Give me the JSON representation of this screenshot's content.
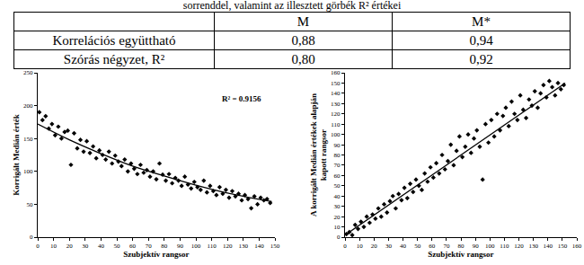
{
  "caption": "sorrenddel, valamint az illesztett görbék R² értékei",
  "table": {
    "header": [
      "M",
      "M*"
    ],
    "rows": [
      [
        "Korrelációs együttható",
        "0,88",
        "0,94"
      ],
      [
        "Szórás négyzet, R²",
        "0,80",
        "0,92"
      ]
    ]
  },
  "chart_data": [
    {
      "type": "scatter",
      "x_label": "Szubjektív rangsor",
      "y_label": [
        "Korrigált Medián érték"
      ],
      "annotation": "R² = 0.9156",
      "xlim": [
        0,
        150
      ],
      "xticks": [
        0,
        10,
        20,
        30,
        40,
        50,
        60,
        70,
        80,
        90,
        100,
        110,
        120,
        130,
        140,
        150
      ],
      "ylim": [
        0,
        250
      ],
      "yticks": [
        0,
        50,
        100,
        150,
        200,
        250
      ],
      "grid": false,
      "series": [
        {
          "type": "scatter",
          "color": "#000000",
          "marker": "diamond",
          "x": [
            1,
            3,
            5,
            7,
            9,
            11,
            13,
            15,
            17,
            19,
            21,
            23,
            25,
            27,
            29,
            31,
            33,
            35,
            37,
            39,
            41,
            43,
            45,
            47,
            49,
            51,
            53,
            55,
            57,
            59,
            61,
            63,
            65,
            67,
            69,
            71,
            73,
            75,
            77,
            79,
            81,
            83,
            85,
            87,
            89,
            91,
            93,
            95,
            97,
            99,
            101,
            103,
            105,
            107,
            109,
            111,
            113,
            115,
            117,
            119,
            121,
            123,
            125,
            127,
            129,
            131,
            133,
            135,
            137,
            139,
            141,
            143,
            145,
            147
          ],
          "values": [
            190,
            178,
            184,
            165,
            172,
            155,
            168,
            150,
            160,
            162,
            110,
            158,
            135,
            148,
            130,
            146,
            128,
            138,
            120,
            132,
            125,
            118,
            130,
            112,
            124,
            115,
            108,
            118,
            100,
            112,
            104,
            96,
            110,
            98,
            102,
            92,
            100,
            88,
            112,
            95,
            86,
            96,
            82,
            90,
            86,
            78,
            92,
            80,
            74,
            84,
            76,
            72,
            86,
            68,
            78,
            70,
            64,
            76,
            66,
            72,
            60,
            70,
            62,
            66,
            56,
            64,
            58,
            44,
            62,
            50,
            60,
            56,
            58,
            52
          ]
        },
        {
          "type": "line",
          "color": "#000000",
          "line_style": "solid",
          "x": [
            0,
            20,
            40,
            60,
            80,
            100,
            120,
            148
          ],
          "values": [
            172,
            148,
            127,
            108,
            93,
            79,
            67,
            54
          ]
        }
      ]
    },
    {
      "type": "scatter",
      "x_label": "Szubjektív rangsor",
      "y_label": [
        "A korrigált Medián értékek alapján",
        "kapott rangsor"
      ],
      "xlim": [
        0,
        160
      ],
      "xticks": [
        0,
        10,
        20,
        30,
        40,
        50,
        60,
        70,
        80,
        90,
        100,
        110,
        120,
        130,
        140,
        150,
        160
      ],
      "ylim": [
        0,
        160
      ],
      "yticks": [
        0,
        10,
        20,
        30,
        40,
        50,
        60,
        70,
        80,
        90,
        100,
        110,
        120,
        130,
        140,
        150,
        160
      ],
      "grid": false,
      "series": [
        {
          "type": "scatter",
          "color": "#000000",
          "marker": "diamond",
          "x": [
            1,
            3,
            5,
            7,
            9,
            11,
            13,
            15,
            17,
            19,
            21,
            23,
            25,
            27,
            29,
            31,
            33,
            35,
            37,
            39,
            41,
            43,
            45,
            47,
            49,
            51,
            53,
            55,
            57,
            59,
            61,
            63,
            65,
            67,
            69,
            71,
            73,
            75,
            77,
            79,
            81,
            83,
            85,
            87,
            89,
            91,
            93,
            95,
            97,
            99,
            101,
            103,
            105,
            107,
            109,
            111,
            113,
            115,
            117,
            119,
            121,
            123,
            125,
            127,
            129,
            131,
            133,
            135,
            137,
            139,
            141,
            143,
            145,
            147,
            149,
            151
          ],
          "values": [
            3,
            5,
            2,
            12,
            8,
            15,
            10,
            20,
            14,
            22,
            18,
            28,
            20,
            32,
            24,
            35,
            40,
            28,
            42,
            36,
            48,
            38,
            52,
            44,
            56,
            50,
            46,
            62,
            54,
            68,
            58,
            72,
            62,
            80,
            66,
            74,
            90,
            70,
            84,
            98,
            78,
            88,
            100,
            82,
            96,
            104,
            88,
            56,
            110,
            92,
            114,
            98,
            120,
            104,
            118,
            126,
            108,
            132,
            120,
            114,
            138,
            124,
            116,
            134,
            128,
            142,
            126,
            140,
            148,
            136,
            152,
            146,
            138,
            150,
            144,
            148
          ]
        },
        {
          "type": "line",
          "color": "#000000",
          "line_style": "solid",
          "x": [
            0,
            152
          ],
          "values": [
            2,
            150
          ]
        }
      ]
    }
  ]
}
